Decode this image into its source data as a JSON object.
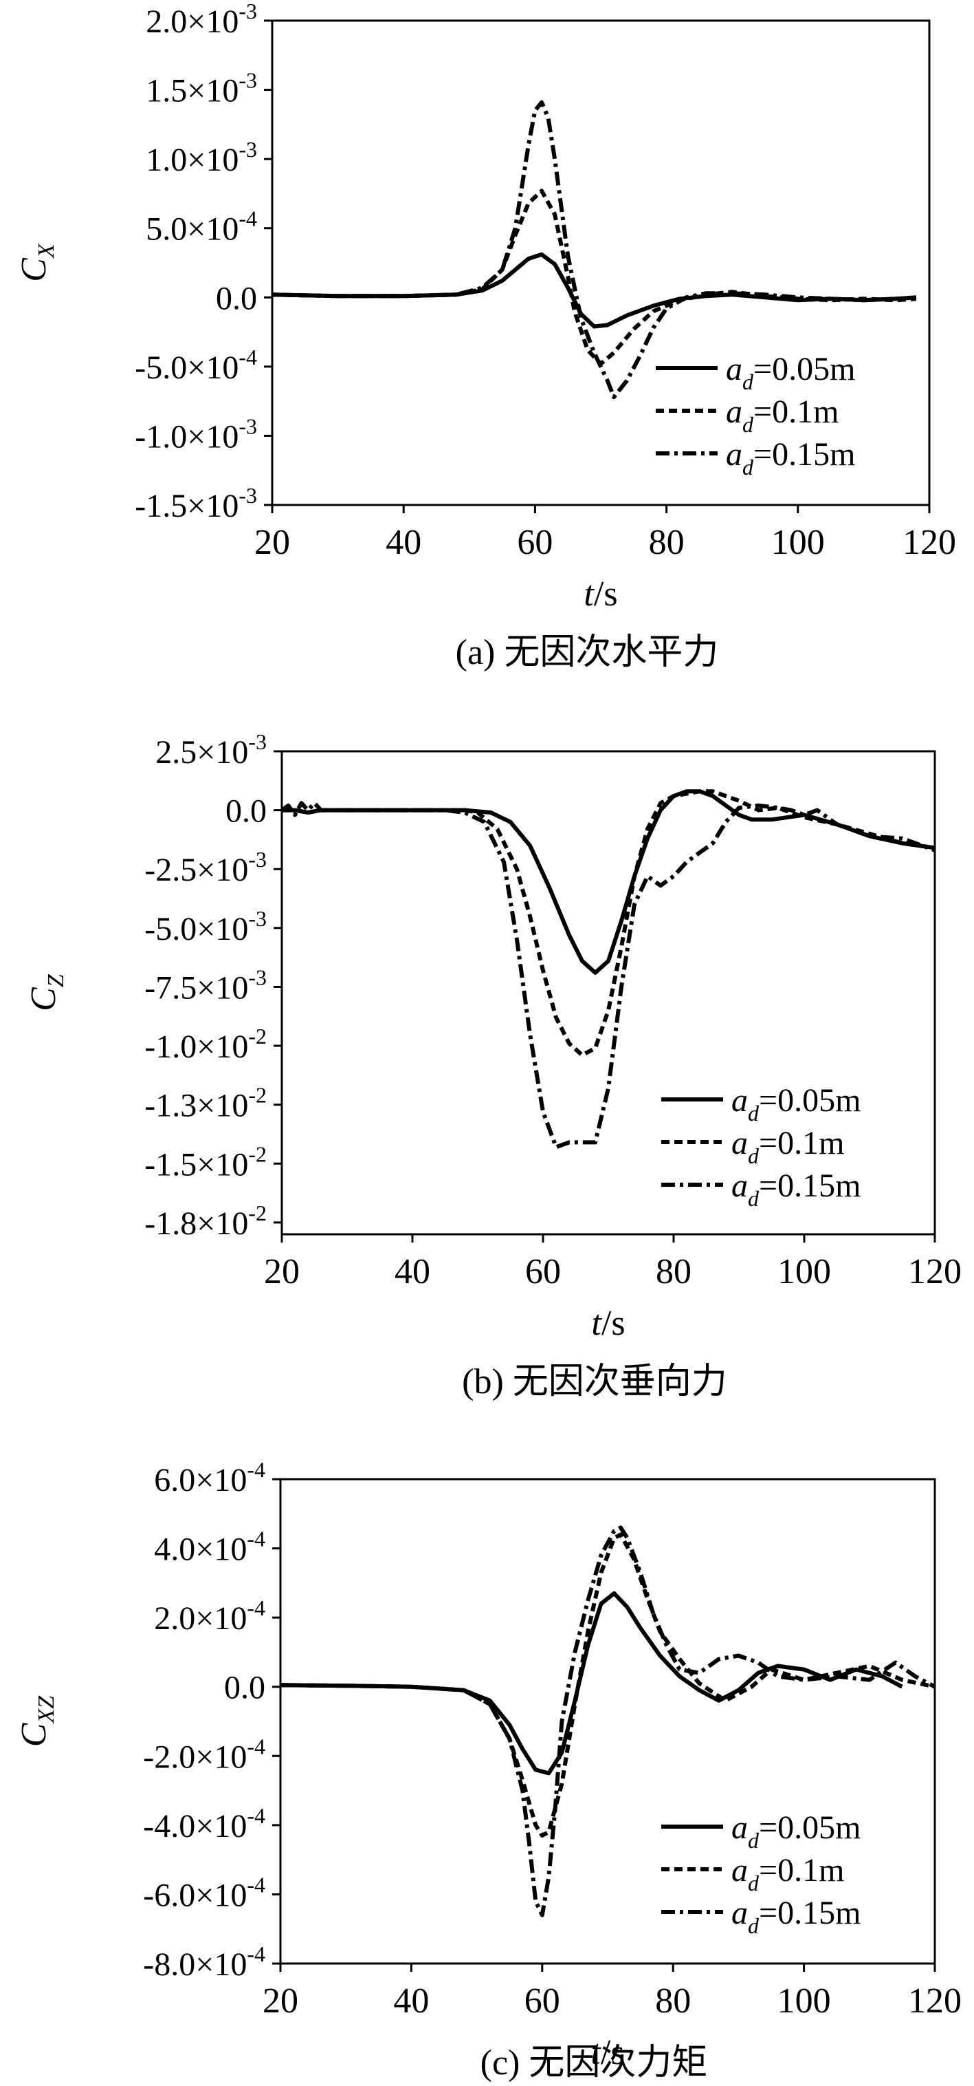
{
  "chart_data": [
    {
      "type": "line",
      "caption": "(a) 无因次水平力",
      "xlabel_italic": "t",
      "xlabel_unit": "/s",
      "ylabel_main": "C",
      "ylabel_sub": "X",
      "xlim": [
        20,
        120
      ],
      "ylim": [
        -0.0015,
        0.002
      ],
      "xticks": [
        20,
        40,
        60,
        80,
        100,
        120
      ],
      "xtick_labels": [
        "20",
        "40",
        "60",
        "80",
        "100",
        "120"
      ],
      "yticks": [
        {
          "value": 0.002,
          "mant": "2.0×10",
          "exp": "-3"
        },
        {
          "value": 0.0015,
          "mant": "1.5×10",
          "exp": "-3"
        },
        {
          "value": 0.001,
          "mant": "1.0×10",
          "exp": "-3"
        },
        {
          "value": 0.0005,
          "mant": "5.0×10",
          "exp": "-4"
        },
        {
          "value": 0.0,
          "mant": "0.0",
          "exp": ""
        },
        {
          "value": -0.0005,
          "mant": "-5.0×10",
          "exp": "-4"
        },
        {
          "value": -0.001,
          "mant": "-1.0×10",
          "exp": "-3"
        },
        {
          "value": -0.0015,
          "mant": "-1.5×10",
          "exp": "-3"
        }
      ],
      "legend_position": "bottom-right",
      "series": [
        {
          "name_italic": "a",
          "name_sub": "d",
          "name_value": "=0.05m",
          "style": "solid",
          "x": [
            20,
            30,
            40,
            48,
            52,
            55,
            57,
            59,
            61,
            63,
            65,
            67,
            69,
            71,
            74,
            78,
            82,
            86,
            90,
            95,
            100,
            105,
            110,
            115,
            118
          ],
          "y": [
            2e-05,
            1e-05,
            1e-05,
            2e-05,
            5e-05,
            0.00012,
            0.0002,
            0.00028,
            0.00031,
            0.00024,
            7e-05,
            -0.00012,
            -0.00021,
            -0.0002,
            -0.00013,
            -6e-05,
            -1e-05,
            1e-05,
            2e-05,
            0.0,
            -2e-05,
            -1e-05,
            -2e-05,
            -1e-05,
            0.0
          ]
        },
        {
          "name_italic": "a",
          "name_sub": "d",
          "name_value": "=0.1m",
          "style": "dashed",
          "x": [
            20,
            30,
            40,
            48,
            52,
            55,
            57,
            59,
            61,
            63,
            65,
            66,
            68,
            70,
            72,
            75,
            78,
            82,
            86,
            90,
            95,
            100,
            105,
            110,
            115,
            118
          ],
          "y": [
            2e-05,
            1e-05,
            1e-05,
            2e-05,
            6e-05,
            0.0002,
            0.00045,
            0.00068,
            0.00077,
            0.0006,
            0.00015,
            -0.0001,
            -0.00038,
            -0.00048,
            -0.0004,
            -0.00023,
            -0.0001,
            -2e-05,
            2e-05,
            4e-05,
            1e-05,
            -1e-05,
            -2e-05,
            -1e-05,
            -2e-05,
            -1e-05
          ]
        },
        {
          "name_italic": "a",
          "name_sub": "d",
          "name_value": "=0.15m",
          "style": "dashdot",
          "x": [
            20,
            30,
            40,
            48,
            52,
            55,
            57,
            59,
            60,
            61,
            62,
            63,
            65,
            67,
            69,
            71,
            72,
            74,
            76,
            78,
            80,
            83,
            86,
            90,
            95,
            100,
            105,
            110,
            115,
            118
          ],
          "y": [
            2e-05,
            1e-05,
            1e-05,
            2e-05,
            7e-05,
            0.0002,
            0.0005,
            0.0011,
            0.00135,
            0.00141,
            0.0013,
            0.001,
            0.0003,
            -0.00015,
            -0.0004,
            -0.0006,
            -0.00072,
            -0.0006,
            -0.00042,
            -0.00022,
            -8e-05,
            0.0,
            3e-05,
            3e-05,
            2e-05,
            0.0,
            -1e-05,
            -2e-05,
            -1e-05,
            0.0
          ]
        }
      ]
    },
    {
      "type": "line",
      "caption": "(b) 无因次垂向力",
      "xlabel_italic": "t",
      "xlabel_unit": "/s",
      "ylabel_main": "C",
      "ylabel_sub": "Z",
      "xlim": [
        20,
        120
      ],
      "ylim": [
        -0.018,
        0.0025
      ],
      "xticks": [
        20,
        40,
        60,
        80,
        100,
        120
      ],
      "xtick_labels": [
        "20",
        "40",
        "60",
        "80",
        "100",
        "120"
      ],
      "yticks": [
        {
          "value": 0.0025,
          "mant": "2.5×10",
          "exp": "-3"
        },
        {
          "value": 0.0,
          "mant": "0.0",
          "exp": ""
        },
        {
          "value": -0.0025,
          "mant": "-2.5×10",
          "exp": "-3"
        },
        {
          "value": -0.005,
          "mant": "-5.0×10",
          "exp": "-3"
        },
        {
          "value": -0.0075,
          "mant": "-7.5×10",
          "exp": "-3"
        },
        {
          "value": -0.01,
          "mant": "-1.0×10",
          "exp": "-2"
        },
        {
          "value": -0.0125,
          "mant": "-1.3×10",
          "exp": "-2"
        },
        {
          "value": -0.015,
          "mant": "-1.5×10",
          "exp": "-2"
        },
        {
          "value": -0.0175,
          "mant": "-1.8×10",
          "exp": "-2"
        }
      ],
      "legend_position": "bottom-right",
      "series": [
        {
          "name_italic": "a",
          "name_sub": "d",
          "name_value": "=0.05m",
          "style": "solid",
          "x": [
            20,
            22,
            24,
            26,
            30,
            40,
            48,
            52,
            55,
            58,
            61,
            64,
            66,
            68,
            70,
            72,
            74,
            76,
            78,
            80,
            82,
            84,
            86,
            88,
            90,
            92,
            95,
            100,
            105,
            110,
            115,
            120
          ],
          "y": [
            0.0,
            0.0,
            -0.0001,
            0.0,
            0.0,
            0.0,
            0.0,
            -0.0001,
            -0.0005,
            -0.0015,
            -0.0033,
            -0.0053,
            -0.0064,
            -0.0069,
            -0.0064,
            -0.0047,
            -0.0028,
            -0.0012,
            0.0,
            0.0006,
            0.0008,
            0.0008,
            0.0006,
            0.0002,
            -0.0002,
            -0.0004,
            -0.0004,
            -0.0002,
            -0.0006,
            -0.0011,
            -0.0014,
            -0.0016
          ]
        },
        {
          "name_italic": "a",
          "name_sub": "d",
          "name_value": "=0.1m",
          "style": "dashed",
          "x": [
            20,
            22,
            24,
            26,
            30,
            40,
            48,
            50,
            53,
            56,
            58,
            60,
            62,
            64,
            66,
            68,
            70,
            72,
            74,
            76,
            78,
            80,
            82,
            84,
            86,
            88,
            90,
            93,
            96,
            100,
            105,
            110,
            115,
            120
          ],
          "y": [
            0.0,
            0.0,
            -0.0001,
            0.0,
            0.0,
            0.0,
            0.0,
            -0.0001,
            -0.0008,
            -0.0025,
            -0.0045,
            -0.0068,
            -0.0088,
            -0.0099,
            -0.0104,
            -0.0101,
            -0.0085,
            -0.0058,
            -0.0028,
            -0.0008,
            0.0003,
            0.0006,
            0.0007,
            0.0008,
            0.0008,
            0.0006,
            0.0004,
            0.0,
            0.0001,
            -0.0003,
            -0.0006,
            -0.001,
            -0.0014,
            -0.0016
          ]
        },
        {
          "name_italic": "a",
          "name_sub": "d",
          "name_value": "=0.15m",
          "style": "dashdot",
          "x": [
            20,
            21,
            22,
            23,
            24,
            25,
            26,
            30,
            40,
            45,
            48,
            51,
            54,
            56,
            58,
            60,
            62,
            64,
            66,
            68,
            70,
            72,
            74,
            76,
            78,
            80,
            82,
            84,
            86,
            88,
            90,
            93,
            96,
            98,
            100,
            102,
            105,
            110,
            115,
            120
          ],
          "y": [
            0.0,
            0.0002,
            -0.0002,
            0.0003,
            0.0,
            0.0003,
            0.0,
            0.0,
            0.0,
            0.0,
            -0.0001,
            -0.0005,
            -0.0022,
            -0.0055,
            -0.0095,
            -0.0128,
            -0.0143,
            -0.0141,
            -0.0141,
            -0.0141,
            -0.0118,
            -0.0075,
            -0.004,
            -0.0028,
            -0.0032,
            -0.0028,
            -0.0022,
            -0.0018,
            -0.0014,
            -0.0005,
            0.0001,
            0.0002,
            0.0001,
            0.0,
            -0.0002,
            0.0,
            -0.0006,
            -0.0011,
            -0.0012,
            -0.0017
          ]
        }
      ]
    },
    {
      "type": "line",
      "caption": "(c) 无因次力矩",
      "xlabel_italic": "t",
      "xlabel_unit": "/s",
      "ylabel_main": "C",
      "ylabel_sub": "XZ",
      "xlim": [
        20,
        120
      ],
      "ylim": [
        -0.0008,
        0.0006
      ],
      "xticks": [
        20,
        40,
        60,
        80,
        100,
        120
      ],
      "xtick_labels": [
        "20",
        "40",
        "60",
        "80",
        "100",
        "120"
      ],
      "yticks": [
        {
          "value": 0.0006,
          "mant": "6.0×10",
          "exp": "-4"
        },
        {
          "value": 0.0004,
          "mant": "4.0×10",
          "exp": "-4"
        },
        {
          "value": 0.0002,
          "mant": "2.0×10",
          "exp": "-4"
        },
        {
          "value": 0.0,
          "mant": "0.0",
          "exp": ""
        },
        {
          "value": -0.0002,
          "mant": "-2.0×10",
          "exp": "-4"
        },
        {
          "value": -0.0004,
          "mant": "-4.0×10",
          "exp": "-4"
        },
        {
          "value": -0.0006,
          "mant": "-6.0×10",
          "exp": "-4"
        },
        {
          "value": -0.0008,
          "mant": "-8.0×10",
          "exp": "-4"
        }
      ],
      "legend_position": "bottom-right",
      "series": [
        {
          "name_italic": "a",
          "name_sub": "d",
          "name_value": "=0.05m",
          "style": "solid",
          "x": [
            20,
            30,
            40,
            48,
            52,
            55,
            57,
            59,
            61,
            63,
            65,
            67,
            69,
            71,
            73,
            75,
            78,
            81,
            84,
            87,
            90,
            93,
            96,
            100,
            104,
            108,
            112,
            115
          ],
          "y": [
            5e-06,
            3e-06,
            0.0,
            -1e-05,
            -4e-05,
            -0.00011,
            -0.00018,
            -0.00024,
            -0.00025,
            -0.00019,
            -4e-05,
            0.00012,
            0.00024,
            0.00027,
            0.00023,
            0.00017,
            9e-05,
            3e-05,
            -1e-05,
            -4e-05,
            -1e-05,
            4e-05,
            6e-05,
            5e-05,
            2e-05,
            5e-05,
            3e-05,
            0.0
          ]
        },
        {
          "name_italic": "a",
          "name_sub": "d",
          "name_value": "=0.1m",
          "style": "dashed",
          "x": [
            20,
            30,
            40,
            48,
            52,
            55,
            57,
            59,
            60,
            61,
            63,
            65,
            67,
            69,
            71,
            72,
            74,
            76,
            78,
            81,
            84,
            88,
            92,
            95,
            100,
            105,
            110,
            115,
            120
          ],
          "y": [
            5e-06,
            3e-06,
            0.0,
            -1e-05,
            -5e-05,
            -0.00015,
            -0.00027,
            -0.0004,
            -0.00043,
            -0.00042,
            -0.00028,
            -5e-05,
            0.00016,
            0.00033,
            0.00043,
            0.00044,
            0.00037,
            0.00026,
            0.00016,
            8e-05,
            1e-05,
            -4e-05,
            0.0,
            5e-05,
            2e-05,
            4e-05,
            6e-05,
            2e-05,
            0.0
          ]
        },
        {
          "name_italic": "a",
          "name_sub": "d",
          "name_value": "=0.15m",
          "style": "dashdot",
          "x": [
            20,
            30,
            40,
            48,
            52,
            55,
            57,
            58,
            59,
            60,
            61,
            62,
            63,
            65,
            67,
            69,
            71,
            72,
            73,
            75,
            77,
            79,
            81,
            84,
            87,
            90,
            93,
            96,
            100,
            105,
            110,
            114,
            117,
            120
          ],
          "y": [
            5e-06,
            3e-06,
            0.0,
            -1e-05,
            -5e-05,
            -0.00015,
            -0.0003,
            -0.00045,
            -0.00062,
            -0.00066,
            -0.00055,
            -0.00035,
            -0.0001,
            0.0001,
            0.00025,
            0.00038,
            0.00045,
            0.00046,
            0.00043,
            0.00033,
            0.00021,
            0.00012,
            5e-05,
            4e-05,
            8e-05,
            9e-05,
            7e-05,
            3e-05,
            2e-05,
            3e-05,
            2e-05,
            7e-05,
            3e-05,
            0.0
          ]
        }
      ]
    }
  ]
}
